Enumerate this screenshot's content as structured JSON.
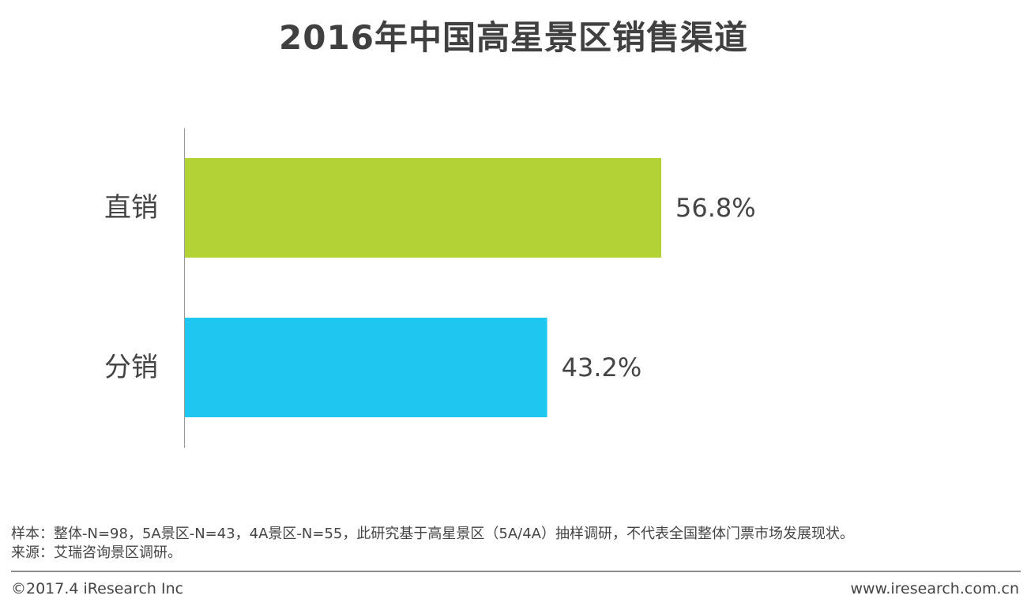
{
  "chart_data": {
    "type": "bar",
    "orientation": "horizontal",
    "title": "2016年中国高星景区销售渠道",
    "categories": [
      "直销",
      "分销"
    ],
    "values": [
      56.8,
      43.2
    ],
    "value_labels": [
      "56.8%",
      "43.2%"
    ],
    "colors": [
      "#b3d235",
      "#1fc6f0"
    ],
    "xlim": [
      0,
      100
    ],
    "grid": false,
    "legend": "none"
  },
  "notes": {
    "sample": "样本：整体-N=98，5A景区-N=43，4A景区-N=55，此研究基于高星景区（5A/4A）抽样调研，不代表全国整体门票市场发展现状。",
    "source": "来源：艾瑞咨询景区调研。"
  },
  "footer": {
    "copyright": "©2017.4 iResearch Inc",
    "website": "www.iresearch.com.cn"
  }
}
